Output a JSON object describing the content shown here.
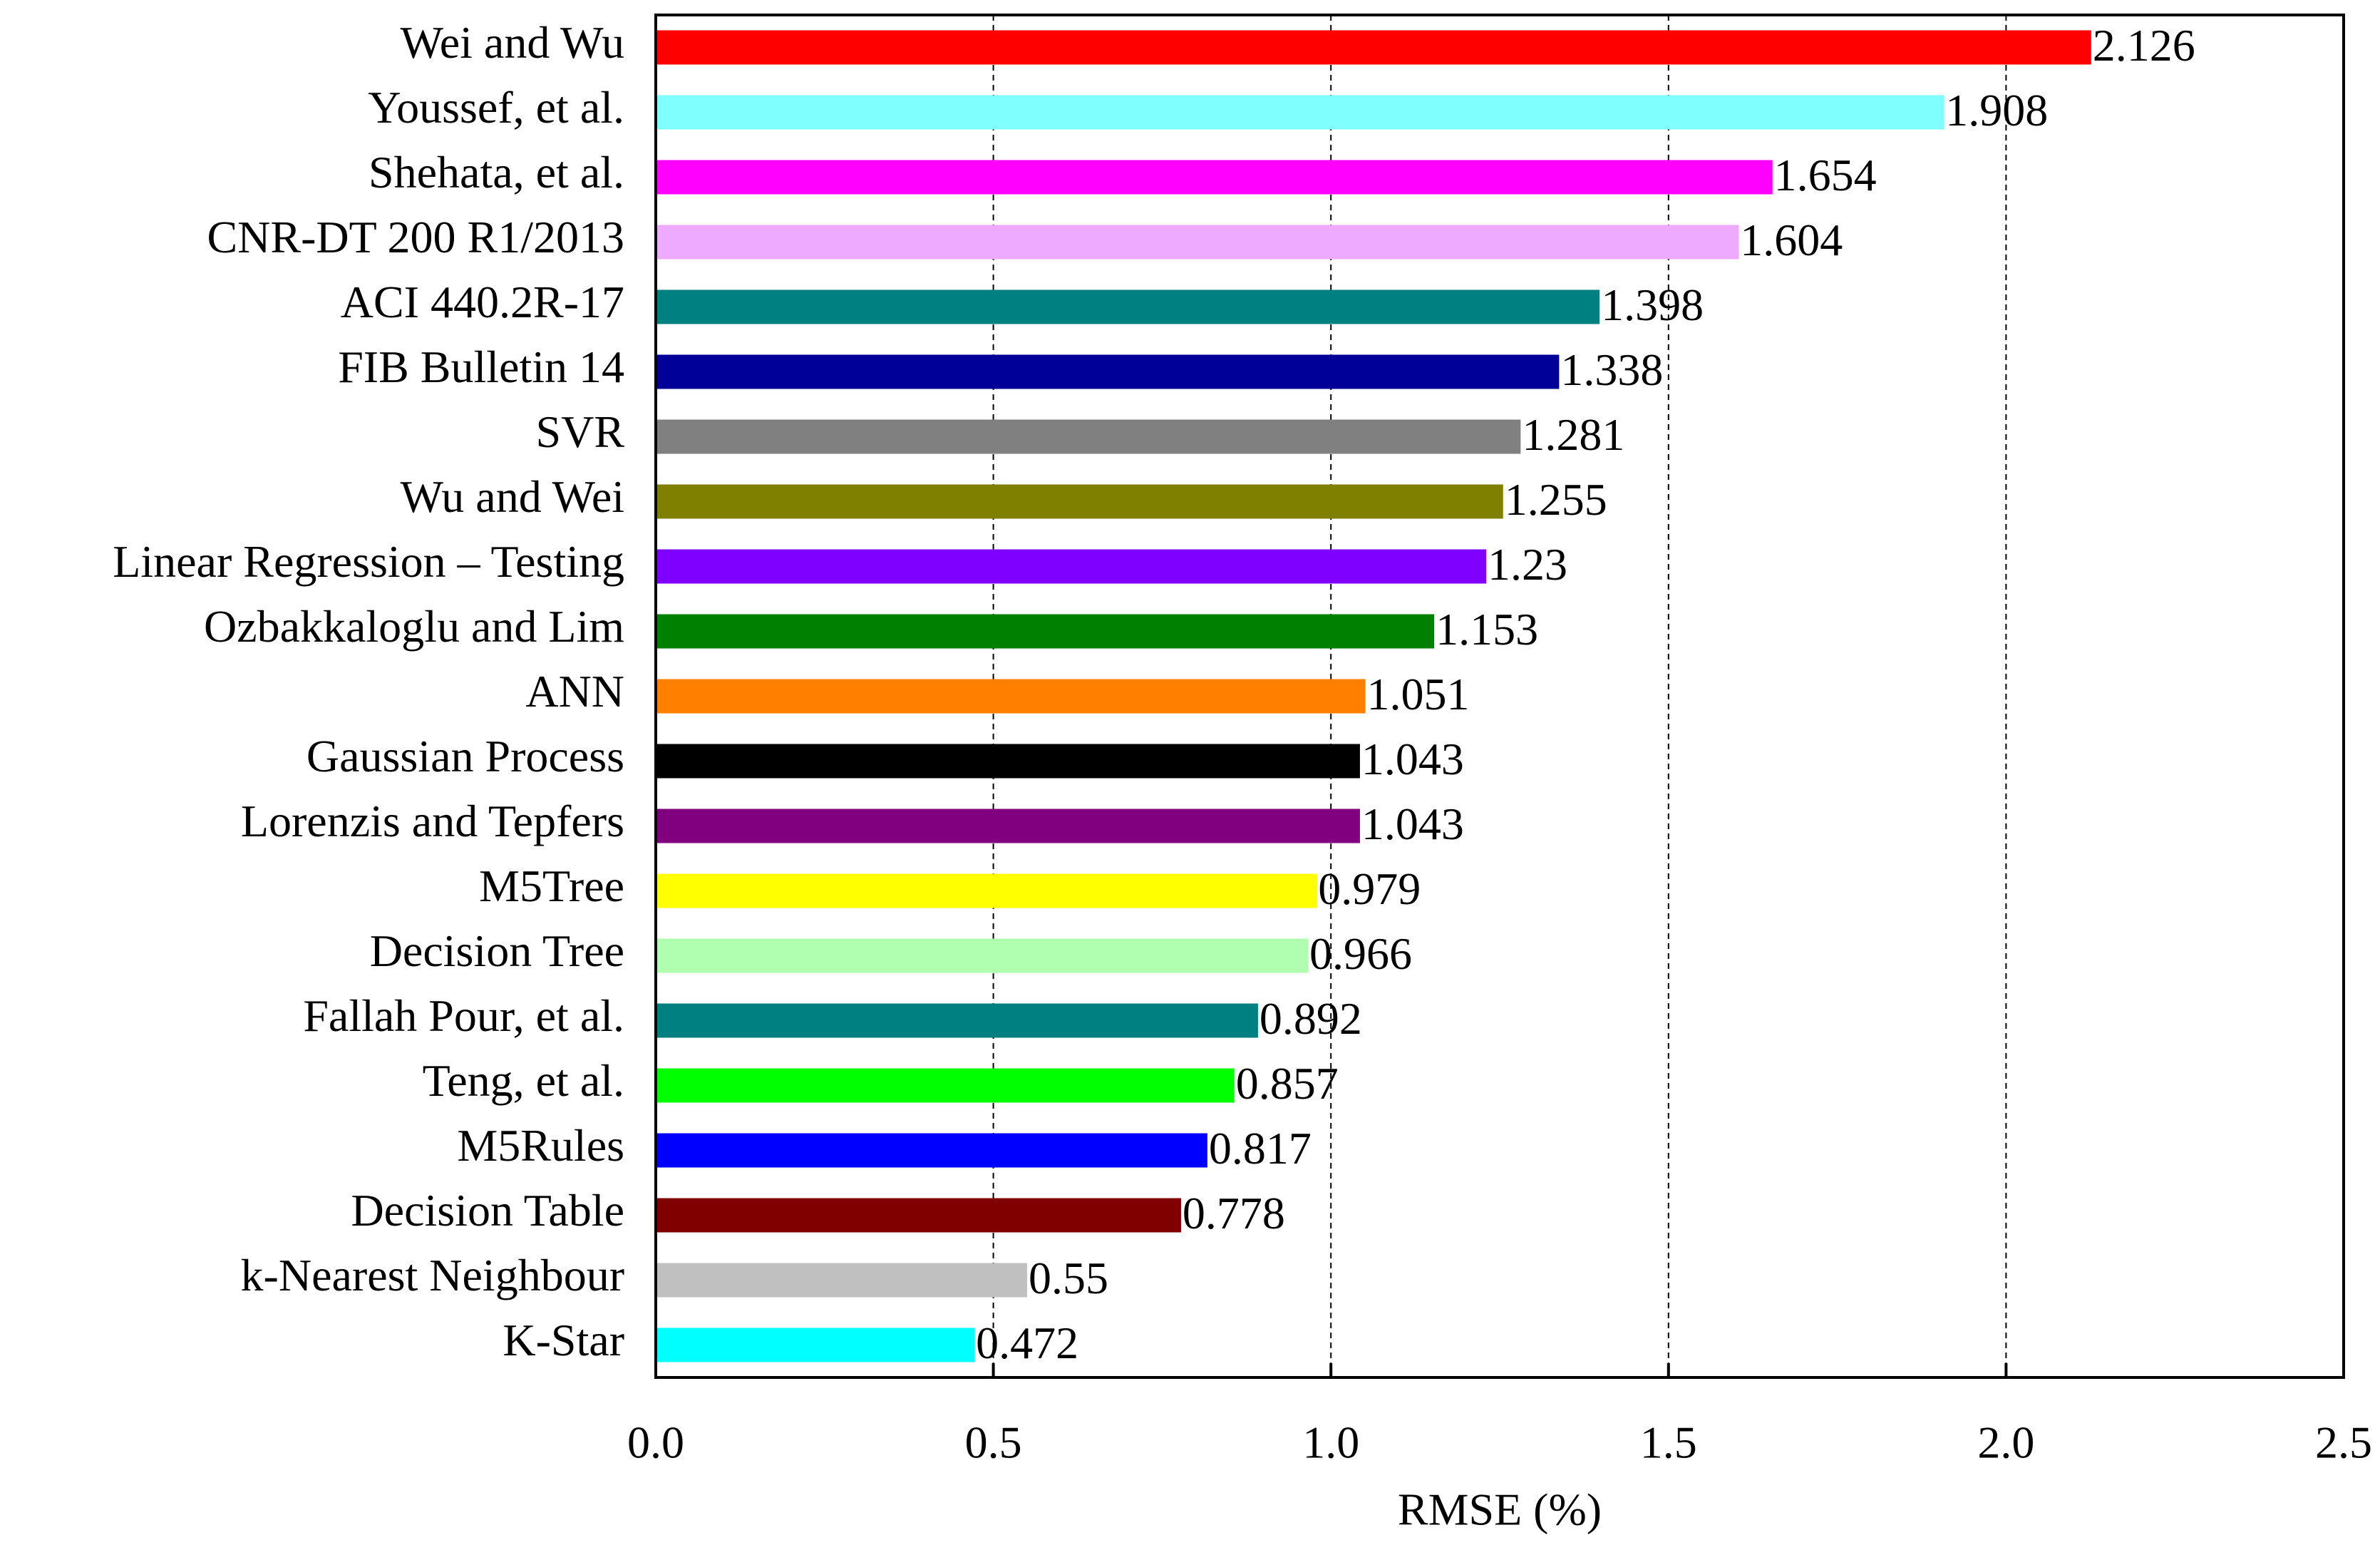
{
  "chart_data": {
    "type": "hbar",
    "x_label": "RMSE (%)",
    "categories": [
      "Wei and Wu",
      "Youssef, et al.",
      "Shehata, et al.",
      "CNR-DT 200 R1/2013",
      "ACI 440.2R-17",
      "FIB Bulletin 14",
      "SVR",
      "Wu and Wei",
      "Linear Regression – Testing",
      "Ozbakkaloglu and Lim",
      "ANN",
      "Gaussian Process",
      "Lorenzis and Tepfers",
      "M5Tree",
      "Decision Tree",
      "Fallah Pour, et al.",
      "Teng, et al.",
      "M5Rules",
      "Decision Table",
      "k-Nearest Neighbour",
      "K-Star"
    ],
    "values": [
      2.126,
      1.908,
      1.654,
      1.604,
      1.398,
      1.338,
      1.281,
      1.255,
      1.23,
      1.153,
      1.051,
      1.043,
      1.043,
      0.979,
      0.966,
      0.892,
      0.857,
      0.817,
      0.778,
      0.55,
      0.472
    ],
    "colors": [
      "#ff0000",
      "#80ffff",
      "#ff00ff",
      "#eeaaff",
      "#008080",
      "#000099",
      "#808080",
      "#808000",
      "#8000ff",
      "#008000",
      "#ff8000",
      "#000000",
      "#800080",
      "#ffff00",
      "#b0ffb0",
      "#008080",
      "#00ff00",
      "#0000ff",
      "#800000",
      "#c0c0c0",
      "#00ffff"
    ],
    "xlim": [
      0,
      2.5
    ],
    "xticks": [
      {
        "value": 0,
        "label": "0.0"
      },
      0.5,
      {
        "value": 1,
        "label": "1.0"
      },
      1.5,
      {
        "value": 2,
        "label": "2.0"
      },
      2.5
    ],
    "grid": true
  }
}
